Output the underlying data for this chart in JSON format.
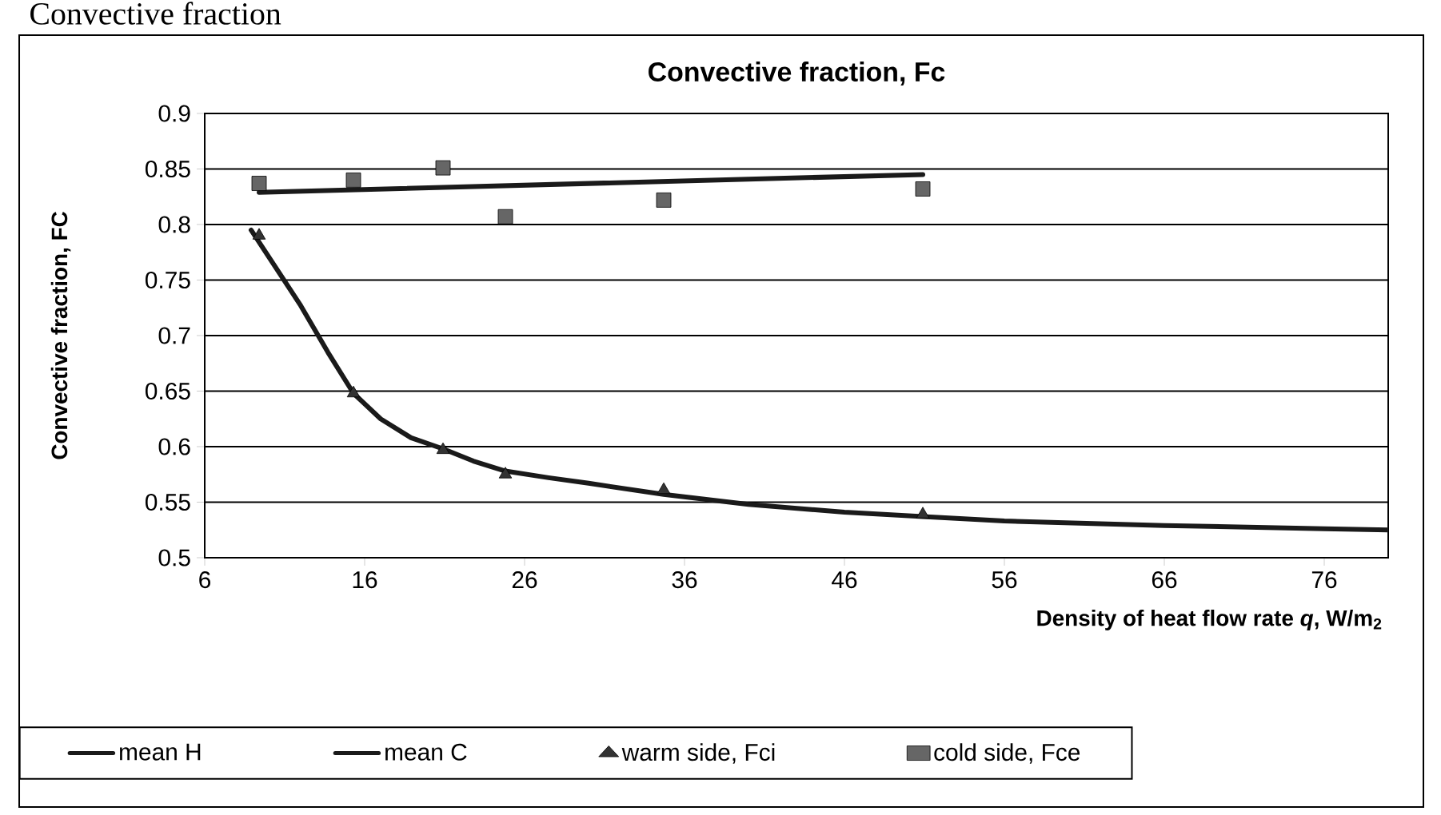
{
  "chart_data": {
    "type": "scatter",
    "title": "Convective fraction, Fc",
    "xlabel": "Density of heat flow rate *q*, W/m$_{2}$",
    "ylabel": "Convective fraction, FC",
    "annotations": [
      "Convective fraction"
    ],
    "xlim": [
      6,
      80
    ],
    "xticks": [
      6,
      16,
      26,
      36,
      46,
      56,
      66,
      76
    ],
    "ylim": [
      0.5,
      0.9
    ],
    "yticks": [
      0.5,
      0.55,
      0.6,
      0.65,
      0.7,
      0.75,
      0.8,
      0.85,
      0.9
    ],
    "grid": "y",
    "legend": "bottom",
    "series": [
      {
        "name": "mean H",
        "type": "line",
        "color": "#1a1a1a",
        "marker": "none",
        "x": [
          8.9,
          10.5,
          12,
          13.7,
          15.3,
          17,
          18.9,
          20.9,
          22.8,
          24.8,
          27.5,
          30,
          34.7,
          40,
          46,
          50.9,
          56,
          66,
          76,
          80
        ],
        "values": [
          0.795,
          0.76,
          0.727,
          0.685,
          0.648,
          0.625,
          0.608,
          0.598,
          0.587,
          0.578,
          0.572,
          0.567,
          0.557,
          0.548,
          0.541,
          0.537,
          0.533,
          0.529,
          0.526,
          0.525
        ]
      },
      {
        "name": "mean C",
        "type": "line",
        "color": "#1a1a1a",
        "marker": "none",
        "x": [
          9.4,
          50.9
        ],
        "values": [
          0.829,
          0.845
        ]
      },
      {
        "name": "warm side, Fci",
        "type": "scatter",
        "color": "#333333",
        "marker": "triangle",
        "x": [
          9.4,
          15.3,
          20.9,
          24.8,
          34.7,
          50.9
        ],
        "values": [
          0.79,
          0.648,
          0.597,
          0.575,
          0.561,
          0.539
        ]
      },
      {
        "name": "cold side, Fce",
        "type": "scatter",
        "color": "#666666",
        "marker": "square",
        "x": [
          9.4,
          15.3,
          20.9,
          24.8,
          34.7,
          50.9
        ],
        "values": [
          0.837,
          0.84,
          0.851,
          0.807,
          0.822,
          0.832
        ]
      }
    ]
  }
}
